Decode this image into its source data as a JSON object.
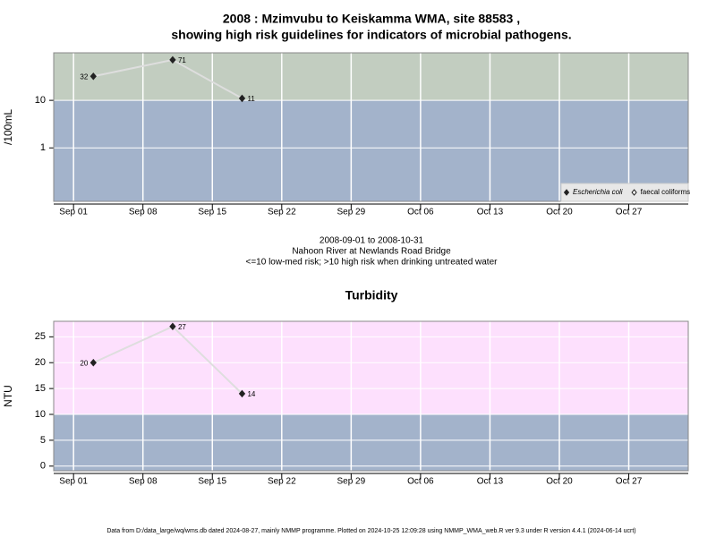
{
  "chart_data": [
    {
      "type": "line",
      "title": [
        "2008 : Mzimvubu to Keiskamma WMA, site 88583 ,",
        "showing high risk guidelines for indicators of microbial pathogens."
      ],
      "ylabel": "/100mL",
      "log_scale": true,
      "ylim": [
        0.075,
        100
      ],
      "yticks": [
        1,
        10
      ],
      "xlim": [
        "2008-08-30",
        "2008-11-02"
      ],
      "xticks": [
        {
          "value": "2008-09-01",
          "label": "Sep 01"
        },
        {
          "value": "2008-09-08",
          "label": "Sep 08"
        },
        {
          "value": "2008-09-15",
          "label": "Sep 15"
        },
        {
          "value": "2008-09-22",
          "label": "Sep 22"
        },
        {
          "value": "2008-09-29",
          "label": "Sep 29"
        },
        {
          "value": "2008-10-06",
          "label": "Oct 06"
        },
        {
          "value": "2008-10-13",
          "label": "Oct 13"
        },
        {
          "value": "2008-10-20",
          "label": "Oct 20"
        },
        {
          "value": "2008-10-27",
          "label": "Oct 27"
        }
      ],
      "grid": true,
      "threshold": 10,
      "above_color": "#c2cdc0",
      "below_color": "#a3b3cb",
      "legend": "bottom-right",
      "series": [
        {
          "name": "Escherichia coli",
          "color": "#222222",
          "marker": "filled",
          "x": [
            "2008-09-03",
            "2008-09-11",
            "2008-09-18"
          ],
          "values": [
            32,
            71,
            11
          ]
        },
        {
          "name": "faecal coliforms",
          "color": "#222222",
          "marker": "open",
          "x": [],
          "values": []
        }
      ],
      "notes": [
        "2008-09-01 to 2008-10-31",
        "Nahoon River at Newlands Road Bridge",
        "<=10 low-med risk; >10 high risk when drinking untreated water"
      ]
    },
    {
      "type": "line",
      "title": [
        "Turbidity"
      ],
      "ylabel": "NTU",
      "log_scale": false,
      "ylim": [
        -0.9,
        28
      ],
      "yticks": [
        0,
        5,
        10,
        15,
        20,
        25
      ],
      "xlim": [
        "2008-08-30",
        "2008-11-02"
      ],
      "xticks": [
        {
          "value": "2008-09-01",
          "label": "Sep 01"
        },
        {
          "value": "2008-09-08",
          "label": "Sep 08"
        },
        {
          "value": "2008-09-15",
          "label": "Sep 15"
        },
        {
          "value": "2008-09-22",
          "label": "Sep 22"
        },
        {
          "value": "2008-09-29",
          "label": "Sep 29"
        },
        {
          "value": "2008-10-06",
          "label": "Oct 06"
        },
        {
          "value": "2008-10-13",
          "label": "Oct 13"
        },
        {
          "value": "2008-10-20",
          "label": "Oct 20"
        },
        {
          "value": "2008-10-27",
          "label": "Oct 27"
        }
      ],
      "grid": true,
      "threshold": 10,
      "above_color": "#fde0fd",
      "below_color": "#a3b3cb",
      "series": [
        {
          "name": "Turbidity",
          "color": "#222222",
          "marker": "filled",
          "x": [
            "2008-09-03",
            "2008-09-11",
            "2008-09-18"
          ],
          "values": [
            20,
            27,
            14
          ]
        }
      ]
    }
  ],
  "footer": "Data from D:/data_large/wq/wms.db dated 2024-08-27, mainly NMMP programme. Plotted on 2024-10-25 12:09:28 using NMMP_WMA_web.R ver 9.3 under R version 4.4.1 (2024-06-14 ucrt)"
}
